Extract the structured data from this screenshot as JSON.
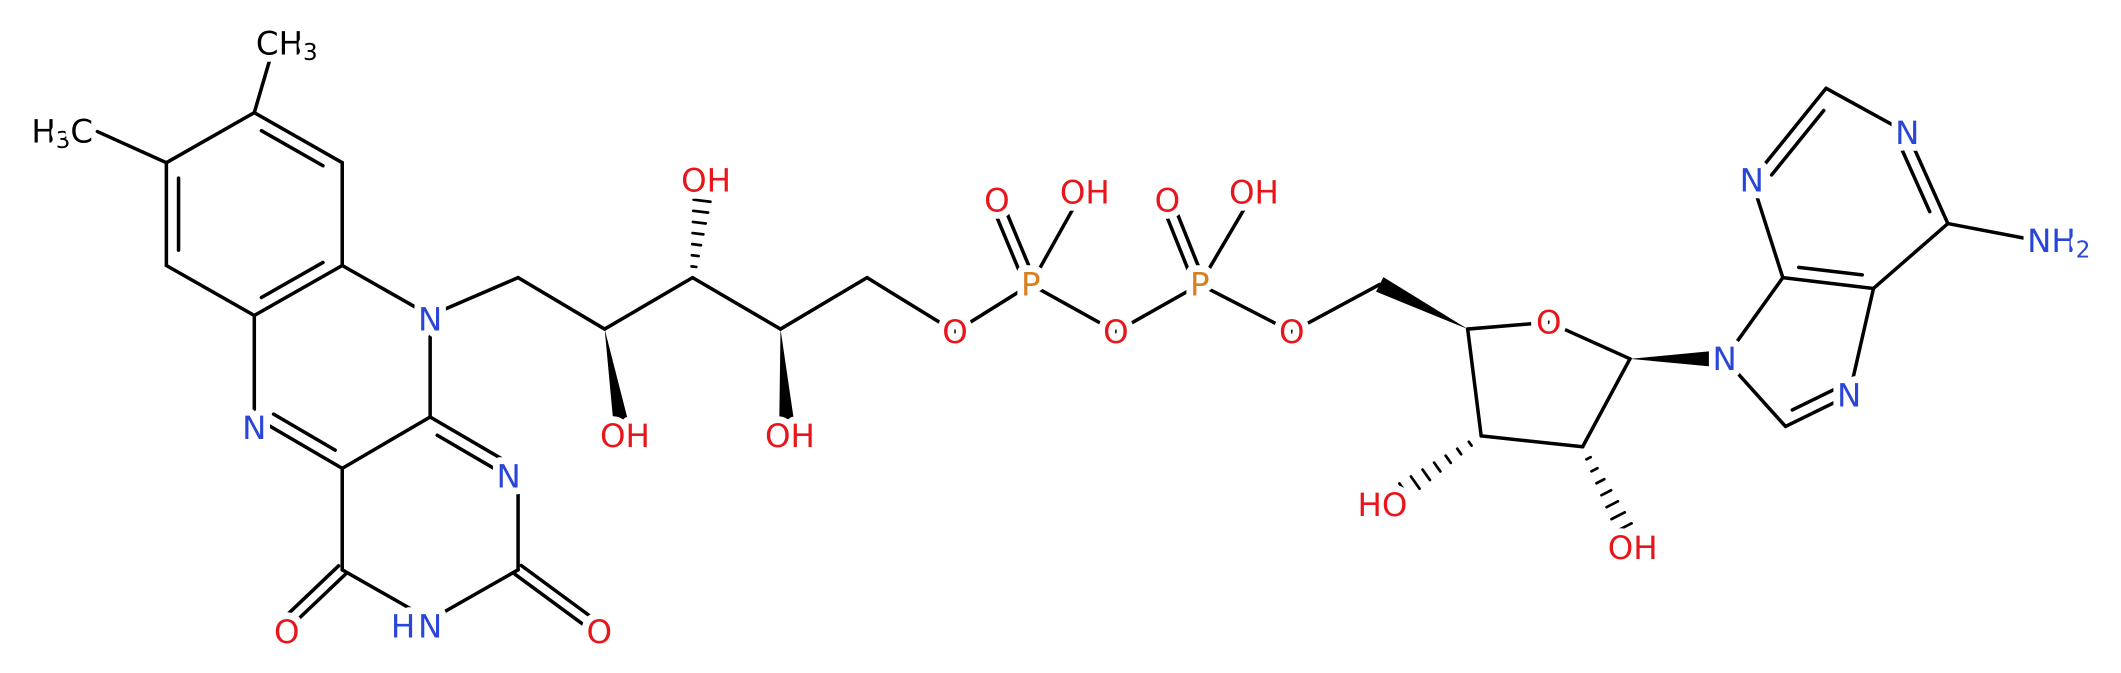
{
  "methyl_top": {
    "text": "CH",
    "sub": "3"
  },
  "methyl_left": {
    "pre": "H",
    "sub": "3",
    "text": "C"
  },
  "amine": {
    "text": "NH",
    "sub": "2"
  },
  "atoms": [
    "N",
    "N",
    "N",
    "H",
    "N",
    "O",
    "O",
    "OH",
    "OH",
    "OH",
    "O",
    "P",
    "O",
    "OH",
    "O",
    "P",
    "O",
    "OH",
    "O",
    "O",
    "HO",
    "OH",
    "N",
    "N",
    "N",
    "N"
  ]
}
